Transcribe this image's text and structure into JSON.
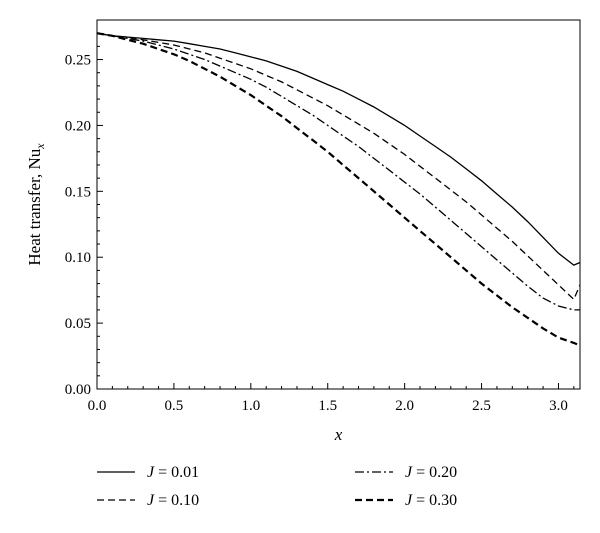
{
  "chart_data": {
    "type": "line",
    "title": "",
    "xlabel": "x",
    "ylabel": {
      "text": "Heat transfer, Nu",
      "subscript": "x"
    },
    "xlim": [
      0,
      3.14
    ],
    "ylim": [
      0,
      0.28
    ],
    "xticks": [
      0.0,
      0.5,
      1.0,
      1.5,
      2.0,
      2.5,
      3.0
    ],
    "xtick_labels": [
      "0.0",
      "0.5",
      "1.0",
      "1.5",
      "2.0",
      "2.5",
      "3.0"
    ],
    "yticks": [
      0.0,
      0.05,
      0.1,
      0.15,
      0.2,
      0.25
    ],
    "ytick_labels": [
      "0.00",
      "0.05",
      "0.10",
      "0.15",
      "0.20",
      "0.25"
    ],
    "grid": false,
    "legend_position": "bottom-outside",
    "x": [
      0.0,
      0.1,
      0.2,
      0.3,
      0.4,
      0.5,
      0.6,
      0.7,
      0.8,
      0.9,
      1.0,
      1.1,
      1.2,
      1.3,
      1.4,
      1.5,
      1.6,
      1.7,
      1.8,
      1.9,
      2.0,
      2.1,
      2.2,
      2.3,
      2.4,
      2.5,
      2.6,
      2.7,
      2.8,
      2.9,
      3.0,
      3.1,
      3.14
    ],
    "series": [
      {
        "name": "J = 0.01",
        "legend_var": "J",
        "legend_value": "= 0.01",
        "dash": "solid",
        "width": 1.3,
        "values": [
          0.27,
          0.268,
          0.267,
          0.266,
          0.265,
          0.264,
          0.262,
          0.26,
          0.258,
          0.255,
          0.252,
          0.249,
          0.245,
          0.241,
          0.236,
          0.231,
          0.226,
          0.22,
          0.214,
          0.207,
          0.2,
          0.192,
          0.184,
          0.176,
          0.167,
          0.158,
          0.148,
          0.138,
          0.127,
          0.115,
          0.103,
          0.094,
          0.096
        ]
      },
      {
        "name": "J = 0.10",
        "legend_var": "J",
        "legend_value": "= 0.10",
        "dash": "dashed",
        "width": 1.3,
        "values": [
          0.27,
          0.268,
          0.267,
          0.265,
          0.263,
          0.261,
          0.258,
          0.255,
          0.251,
          0.247,
          0.243,
          0.238,
          0.233,
          0.227,
          0.221,
          0.215,
          0.208,
          0.201,
          0.194,
          0.186,
          0.178,
          0.169,
          0.16,
          0.151,
          0.142,
          0.132,
          0.122,
          0.112,
          0.101,
          0.09,
          0.079,
          0.068,
          0.079
        ]
      },
      {
        "name": "J = 0.20",
        "legend_var": "J",
        "legend_value": "= 0.20",
        "dash": "dashdot",
        "width": 1.3,
        "values": [
          0.27,
          0.268,
          0.266,
          0.264,
          0.261,
          0.258,
          0.254,
          0.25,
          0.245,
          0.24,
          0.235,
          0.229,
          0.222,
          0.215,
          0.208,
          0.2,
          0.192,
          0.184,
          0.175,
          0.166,
          0.157,
          0.148,
          0.138,
          0.128,
          0.118,
          0.108,
          0.098,
          0.088,
          0.078,
          0.069,
          0.063,
          0.06,
          0.06
        ]
      },
      {
        "name": "J = 0.30",
        "legend_var": "J",
        "legend_value": "= 0.30",
        "dash": "dashed-bold",
        "width": 2.2,
        "values": [
          0.27,
          0.268,
          0.265,
          0.262,
          0.258,
          0.254,
          0.249,
          0.243,
          0.237,
          0.23,
          0.223,
          0.215,
          0.207,
          0.198,
          0.189,
          0.18,
          0.17,
          0.16,
          0.15,
          0.14,
          0.13,
          0.12,
          0.11,
          0.1,
          0.09,
          0.08,
          0.071,
          0.062,
          0.054,
          0.046,
          0.039,
          0.035,
          0.033
        ]
      }
    ]
  }
}
